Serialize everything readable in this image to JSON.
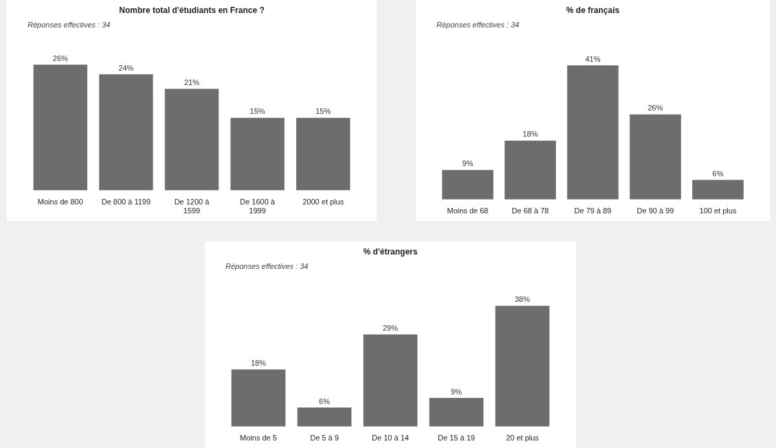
{
  "chart_data": [
    {
      "type": "bar",
      "title": "Nombre total d'étudiants en France ?",
      "annotations": [
        "Réponses effectives : 34"
      ],
      "categories": [
        "Moins de 800",
        "De 800 à 1199",
        "De 1200 à 1599",
        "De 1600 à 1999",
        "2000 et plus"
      ],
      "values": [
        26,
        24,
        21,
        15,
        15
      ],
      "value_labels": [
        "26%",
        "24%",
        "21%",
        "15%",
        "15%"
      ],
      "color": "#6b6e6d"
    },
    {
      "type": "bar",
      "title": "% de français",
      "annotations": [
        "Réponses effectives : 34"
      ],
      "categories": [
        "Moins de 68",
        "De 68 à 78",
        "De 79 à 89",
        "De 90 à 99",
        "100 et plus"
      ],
      "values": [
        9,
        18,
        41,
        26,
        6
      ],
      "value_labels": [
        "9%",
        "18%",
        "41%",
        "26%",
        "6%"
      ],
      "color": "#6b6e6d"
    },
    {
      "type": "bar",
      "title": "% d'étrangers",
      "annotations": [
        "Réponses effectives : 34"
      ],
      "categories": [
        "Moins de 5",
        "De 5 à 9",
        "De 10 à 14",
        "De 15 à 19",
        "20 et plus"
      ],
      "values": [
        18,
        6,
        29,
        9,
        38
      ],
      "value_labels": [
        "18%",
        "6%",
        "29%",
        "9%",
        "38%"
      ],
      "color": "#6b6e6d"
    }
  ]
}
